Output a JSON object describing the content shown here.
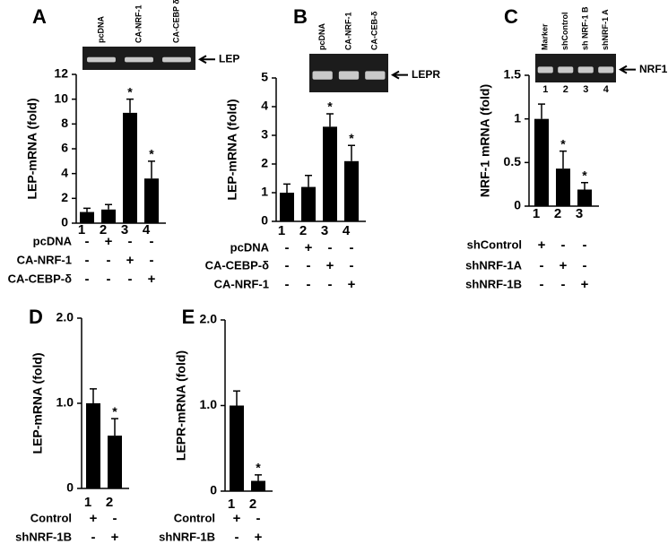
{
  "chart_data": [
    {
      "type": "bar",
      "panel": "A",
      "ylabel": "LEP-mRNA (fold)",
      "color": "#000000",
      "categories": [
        "1",
        "2",
        "3",
        "4"
      ],
      "values": [
        0.9,
        1.1,
        8.9,
        3.6
      ],
      "errors": [
        0.3,
        0.4,
        1.1,
        1.4
      ],
      "significance": [
        null,
        null,
        "*",
        "*"
      ],
      "ylim": [
        0,
        12
      ],
      "yticks": [
        0,
        2,
        4,
        6,
        8,
        10,
        12
      ],
      "treatments": [
        {
          "name": "pcDNA",
          "signs": [
            "-",
            "+",
            "-",
            "-"
          ]
        },
        {
          "name": "CA-NRF-1",
          "signs": [
            "-",
            "-",
            "+",
            "-"
          ]
        },
        {
          "name": "CA-CEBP-δ",
          "signs": [
            "-",
            "-",
            "-",
            "+"
          ]
        }
      ],
      "gel": {
        "lanes": [
          "pcDNA",
          "CA-NRF-1",
          "CA-CEBP δ"
        ],
        "label": "LEP"
      }
    },
    {
      "type": "bar",
      "panel": "B",
      "ylabel": "LEP-mRNA (fold)",
      "color": "#000000",
      "categories": [
        "1",
        "2",
        "3",
        "4"
      ],
      "values": [
        1.0,
        1.2,
        3.3,
        2.1
      ],
      "errors": [
        0.3,
        0.4,
        0.45,
        0.55
      ],
      "significance": [
        null,
        null,
        "*",
        "*"
      ],
      "ylim": [
        0,
        5
      ],
      "yticks": [
        0,
        1,
        2,
        3,
        4,
        5
      ],
      "treatments": [
        {
          "name": "pcDNA",
          "signs": [
            "-",
            "+",
            "-",
            "-"
          ]
        },
        {
          "name": "CA-CEBP-δ",
          "signs": [
            "-",
            "-",
            "+",
            "-"
          ]
        },
        {
          "name": "CA-NRF-1",
          "signs": [
            "-",
            "-",
            "-",
            "+"
          ]
        }
      ],
      "gel": {
        "lanes": [
          "pcDNA",
          "CA-NRF-1",
          "CA-CEB-δ"
        ],
        "label": "LEPR"
      }
    },
    {
      "type": "bar",
      "panel": "C",
      "ylabel": "NRF-1 mRNA (fold)",
      "color": "#000000",
      "categories": [
        "1",
        "2",
        "3"
      ],
      "values": [
        1.0,
        0.43,
        0.19
      ],
      "errors": [
        0.17,
        0.2,
        0.08
      ],
      "significance": [
        null,
        "*",
        "*"
      ],
      "ylim": [
        0,
        1.5
      ],
      "yticks": [
        0,
        0.5,
        1,
        1.5
      ],
      "treatments": [
        {
          "name": "shControl",
          "signs": [
            "+",
            "-",
            "-"
          ]
        },
        {
          "name": "shNRF-1A",
          "signs": [
            "-",
            "+",
            "-"
          ]
        },
        {
          "name": "shNRF-1B",
          "signs": [
            "-",
            "-",
            "+"
          ]
        }
      ],
      "gel": {
        "lanes": [
          "Marker",
          "shControl",
          "sh NRF-1 B",
          "shNRF-1 A"
        ],
        "lane_numbers": [
          "1",
          "2",
          "3",
          "4"
        ],
        "label": "NRF1"
      }
    },
    {
      "type": "bar",
      "panel": "D",
      "ylabel": "LEP-mRNA (fold)",
      "color": "#000000",
      "categories": [
        "1",
        "2"
      ],
      "values": [
        1.0,
        0.62
      ],
      "errors": [
        0.17,
        0.2
      ],
      "significance": [
        null,
        "*"
      ],
      "ylim": [
        0,
        2
      ],
      "yticks": [
        0,
        {
          "value": 1,
          "label": "1.0"
        },
        {
          "value": 2,
          "label": "2.0"
        }
      ],
      "treatments": [
        {
          "name": "Control",
          "signs": [
            "+",
            "-"
          ]
        },
        {
          "name": "shNRF-1B",
          "signs": [
            "-",
            "+"
          ]
        }
      ]
    },
    {
      "type": "bar",
      "panel": "E",
      "ylabel": "LEPR-mRNA (fold)",
      "color": "#000000",
      "categories": [
        "1",
        "2"
      ],
      "values": [
        1.0,
        0.12
      ],
      "errors": [
        0.17,
        0.07
      ],
      "significance": [
        null,
        "*"
      ],
      "ylim": [
        0,
        2
      ],
      "yticks": [
        0,
        {
          "value": 1,
          "label": "1.0"
        },
        {
          "value": 2,
          "label": "2.0"
        }
      ],
      "treatments": [
        {
          "name": "Control",
          "signs": [
            "+",
            "-"
          ]
        },
        {
          "name": "shNRF-1B",
          "signs": [
            "-",
            "+"
          ]
        }
      ]
    }
  ]
}
